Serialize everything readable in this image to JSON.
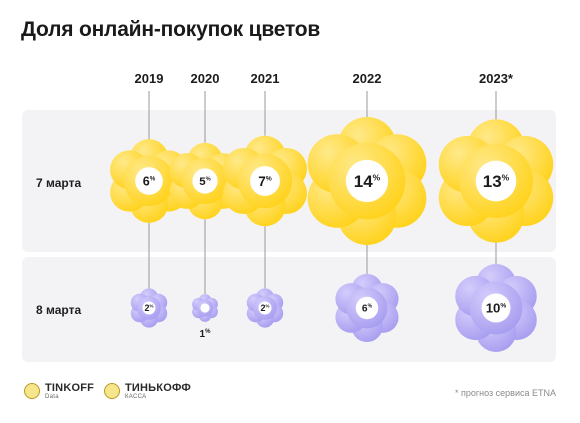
{
  "title": "Доля онлайн-покупок цветов",
  "rows": {
    "row1": "7 марта",
    "row2": "8 марта"
  },
  "footnote": "* прогноз сервиса ETNA",
  "logos": {
    "logo1": {
      "name": "TINKOFF",
      "sub": "Data"
    },
    "logo2": {
      "name": "ТИНЬКОФФ",
      "sub": "КАССА"
    }
  },
  "colors": {
    "yellow": "#ffd21a",
    "purple": "#a79df0",
    "band": "#f3f3f5"
  },
  "icons": [
    "flower-icon",
    "tinkoff-logo-icon"
  ],
  "chart_data": {
    "type": "pictogram",
    "categories": [
      "2019",
      "2020",
      "2021",
      "2022",
      "2023*"
    ],
    "unit": "%",
    "series": [
      {
        "name": "7 марта",
        "values": [
          6,
          5,
          7,
          14,
          13
        ]
      },
      {
        "name": "8 марта",
        "values": [
          2,
          1,
          2,
          6,
          10
        ]
      }
    ]
  }
}
